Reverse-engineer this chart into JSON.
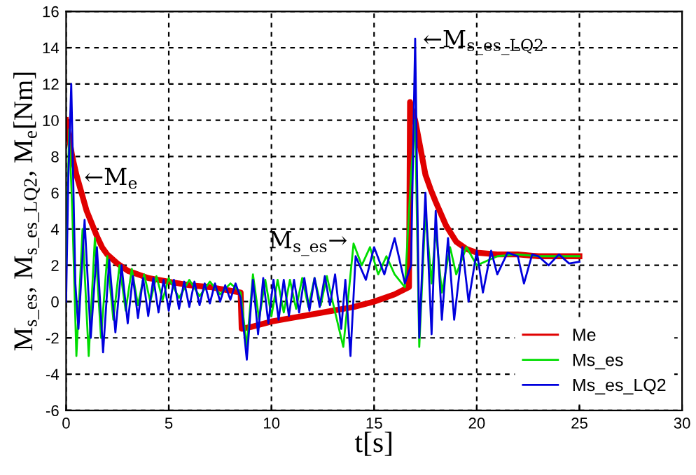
{
  "chart_data": {
    "type": "line",
    "xlabel": "t[s]",
    "ylabel": "M$_{s_es}$, M$_{s_es_LQ2}$, M$_{e}$[Nm]",
    "xlim": [
      0,
      30
    ],
    "xticks": [
      0,
      5,
      10,
      15,
      20,
      25,
      30
    ],
    "ylim": [
      -6,
      16
    ],
    "yticks": [
      -6,
      -4,
      -2,
      0,
      2,
      4,
      6,
      8,
      10,
      12,
      14,
      16
    ],
    "grid": true,
    "legend": "bottom right",
    "line_style": "solid",
    "marker": "none",
    "annotations": [
      {
        "text": "←M$_{e}$",
        "x": 0.5,
        "y": 7
      },
      {
        "text": "M$_{s_es}$→",
        "x": 14,
        "y": 3.2
      },
      {
        "text": "←M$_{s_es_LQ2}$",
        "x": 17,
        "y": 14.5
      }
    ],
    "series": [
      {
        "name": "Me",
        "color": "#e00000",
        "x": [
          0,
          0.15,
          0.3,
          0.5,
          0.75,
          1,
          1.25,
          1.5,
          1.75,
          2,
          2.5,
          3,
          3.5,
          4,
          5,
          6,
          7,
          8,
          8.5,
          8.55,
          9,
          10,
          11,
          12,
          13,
          14,
          15,
          16,
          16.7,
          16.75,
          17,
          17.25,
          17.5,
          17.75,
          18,
          18.5,
          19,
          19.5,
          20,
          21,
          22,
          23,
          24,
          25
        ],
        "values": [
          10,
          9,
          8,
          7,
          6,
          5,
          4.3,
          3.6,
          3,
          2.6,
          2.1,
          1.7,
          1.5,
          1.3,
          1.1,
          0.9,
          0.8,
          0.6,
          0.5,
          -1.5,
          -1.4,
          -1.1,
          -0.9,
          -0.7,
          -0.5,
          -0.3,
          0,
          0.4,
          0.8,
          11,
          10,
          8.5,
          7,
          6.2,
          5.5,
          4.2,
          3.3,
          2.9,
          2.7,
          2.6,
          2.6,
          2.5,
          2.5,
          2.5
        ]
      },
      {
        "name": "Ms_es",
        "color": "#00dd00",
        "x": [
          0,
          0.15,
          0.3,
          0.5,
          0.8,
          1.1,
          1.4,
          1.7,
          2,
          2.3,
          2.6,
          2.9,
          3.2,
          3.5,
          3.8,
          4.1,
          4.4,
          4.7,
          5,
          5.5,
          6,
          6.5,
          7,
          7.5,
          8,
          8.5,
          8.8,
          9.1,
          9.4,
          9.7,
          10,
          10.3,
          10.6,
          10.9,
          11.2,
          11.5,
          11.8,
          12.1,
          12.4,
          12.7,
          13,
          13.5,
          14,
          14.4,
          14.8,
          15.2,
          15.6,
          16,
          16.5,
          16.8,
          17,
          17.2,
          17.5,
          17.8,
          18,
          18.3,
          18.7,
          19,
          19.5,
          20,
          21,
          22,
          23,
          24,
          25
        ],
        "values": [
          2,
          9.5,
          5,
          -3,
          4,
          -3,
          3.5,
          -2,
          2.5,
          -1,
          2,
          -0.5,
          1.8,
          -0.2,
          1.5,
          0,
          1.4,
          0.1,
          1.3,
          0.2,
          1.2,
          0.3,
          1.1,
          0.4,
          1.0,
          0.5,
          -2.5,
          1.5,
          -1.0,
          1.2,
          -0.8,
          1.2,
          -0.6,
          1.2,
          -0.4,
          1.3,
          -0.3,
          1.3,
          -0.2,
          1.4,
          -0.1,
          -2.5,
          3.2,
          2,
          3,
          1.5,
          2.5,
          1.5,
          0.8,
          7,
          10,
          -2.5,
          5,
          1,
          4,
          0.5,
          3,
          1.5,
          3,
          2,
          2.5,
          2.6,
          2.5,
          2.5,
          2.5
        ]
      },
      {
        "name": "Ms_es_LQ2",
        "color": "#0000dd",
        "x": [
          0,
          0.1,
          0.25,
          0.45,
          0.6,
          0.9,
          1.2,
          1.5,
          1.8,
          2.1,
          2.4,
          2.7,
          3.0,
          3.25,
          3.5,
          3.75,
          4.0,
          4.25,
          4.5,
          4.75,
          5.0,
          5.25,
          5.5,
          5.75,
          6.0,
          6.25,
          6.5,
          6.75,
          7.0,
          7.25,
          7.5,
          7.75,
          8.0,
          8.25,
          8.5,
          8.8,
          9.1,
          9.35,
          9.6,
          9.85,
          10.1,
          10.35,
          10.6,
          10.85,
          11.1,
          11.35,
          11.6,
          11.85,
          12.1,
          12.35,
          12.6,
          12.85,
          13.1,
          13.4,
          13.6,
          13.85,
          14.1,
          14.6,
          15,
          15.5,
          16,
          16.5,
          16.8,
          17.0,
          17.2,
          17.5,
          17.8,
          18,
          18.3,
          18.6,
          18.9,
          19.3,
          19.6,
          20,
          20.3,
          20.7,
          21,
          21.5,
          22,
          22.3,
          22.7,
          23,
          23.5,
          24,
          24.5,
          25
        ],
        "values": [
          0,
          6.5,
          12,
          1,
          -1.5,
          4.5,
          -2,
          3,
          -2.8,
          2.3,
          -1.7,
          2,
          -1.2,
          1.4,
          -0.9,
          1.3,
          -0.8,
          1.3,
          -0.6,
          1.2,
          -0.5,
          1.2,
          -0.4,
          1.1,
          -0.3,
          1.1,
          -0.2,
          1.0,
          -0.1,
          1.0,
          0,
          0.9,
          0.1,
          1.0,
          0.2,
          -3.2,
          1.2,
          -1.8,
          1.3,
          -1.2,
          1.2,
          -1.0,
          1.2,
          -0.8,
          1.2,
          -0.6,
          1.3,
          -0.5,
          1.3,
          -0.3,
          1.4,
          -0.2,
          1.5,
          -1.5,
          1.2,
          -3.0,
          2.5,
          1.2,
          3,
          1.5,
          3.5,
          1,
          2,
          14.5,
          -2,
          6,
          -1.8,
          5,
          -1,
          3.5,
          -1,
          3,
          0,
          2.8,
          0.5,
          2.8,
          1.5,
          2.7,
          2.5,
          1,
          2.6,
          2.5,
          2.0,
          2.6,
          2.1,
          2.2
        ]
      }
    ]
  }
}
